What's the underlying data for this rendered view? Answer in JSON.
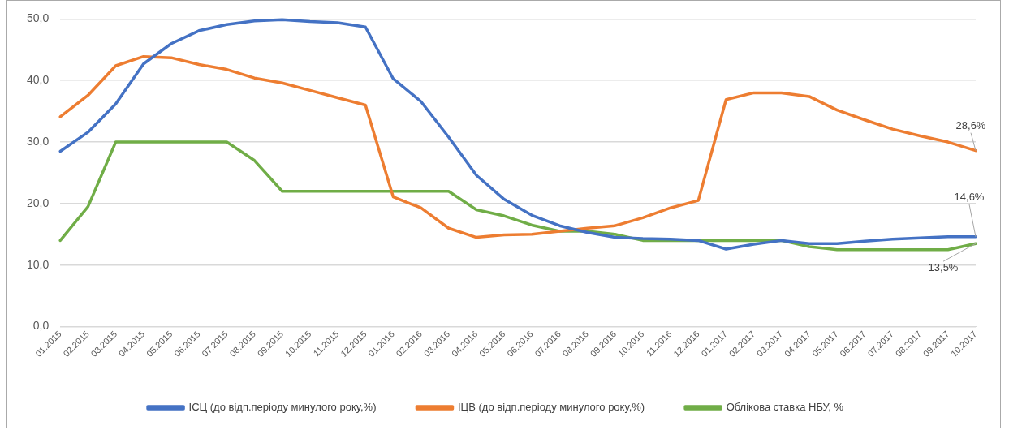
{
  "chart_data": {
    "type": "line",
    "categories": [
      "01.2015",
      "02.2015",
      "03.2015",
      "04.2015",
      "05.2015",
      "06.2015",
      "07.2015",
      "08.2015",
      "09.2015",
      "10.2015",
      "11.2015",
      "12.2015",
      "01.2016",
      "02.2016",
      "03.2016",
      "04.2016",
      "05.2016",
      "06.2016",
      "07.2016",
      "08.2016",
      "09.2016",
      "10.2016",
      "11.2016",
      "12.2016",
      "01.2017",
      "02.2017",
      "03.2017",
      "04.2017",
      "05.2017",
      "06.2017",
      "07.2017",
      "08.2017",
      "09.2017",
      "10.2017"
    ],
    "series": [
      {
        "name": "ІСЦ (до відп.періоду минулого року,%)",
        "color": "#4472c4",
        "values": [
          28.5,
          31.6,
          36.2,
          42.7,
          46.0,
          48.1,
          49.1,
          49.7,
          49.9,
          49.6,
          49.4,
          48.7,
          40.3,
          36.6,
          30.8,
          24.6,
          20.7,
          18.1,
          16.4,
          15.3,
          14.5,
          14.3,
          14.2,
          14.0,
          12.6,
          13.4,
          14.0,
          13.5,
          13.5,
          13.9,
          14.2,
          14.4,
          14.6,
          14.6
        ],
        "value_labels": [
          null,
          null,
          null,
          null,
          null,
          null,
          null,
          null,
          null,
          null,
          null,
          null,
          null,
          null,
          null,
          null,
          null,
          null,
          null,
          null,
          null,
          null,
          null,
          null,
          null,
          null,
          null,
          null,
          null,
          null,
          null,
          null,
          null,
          "14,6%"
        ]
      },
      {
        "name": "ІЦВ (до відп.періоду минулого року,%)",
        "color": "#ed7d31",
        "values": [
          34.1,
          37.6,
          42.4,
          43.9,
          43.7,
          42.6,
          41.8,
          40.4,
          39.6,
          38.4,
          37.2,
          36.0,
          21.1,
          19.3,
          16.0,
          14.5,
          14.9,
          15.0,
          15.5,
          16.0,
          16.4,
          17.7,
          19.3,
          20.5,
          36.9,
          38.0,
          38.0,
          37.4,
          35.2,
          33.6,
          32.1,
          31.0,
          30.0,
          28.6
        ],
        "value_labels": [
          null,
          null,
          null,
          null,
          null,
          null,
          null,
          null,
          null,
          null,
          null,
          null,
          null,
          null,
          null,
          null,
          null,
          null,
          null,
          null,
          null,
          null,
          null,
          null,
          null,
          null,
          null,
          null,
          null,
          null,
          null,
          null,
          null,
          "28,6%"
        ]
      },
      {
        "name": "Облікова ставка НБУ, %",
        "color": "#70ad47",
        "values": [
          14,
          19.5,
          30,
          30,
          30,
          30,
          30,
          27,
          22,
          22,
          22,
          22,
          22,
          22,
          22,
          19,
          18,
          16.5,
          15.5,
          15.5,
          15,
          14,
          14,
          14,
          14,
          14,
          14,
          13,
          12.5,
          12.5,
          12.5,
          12.5,
          12.5,
          13.5
        ],
        "value_labels": [
          null,
          null,
          null,
          null,
          null,
          null,
          null,
          null,
          null,
          null,
          null,
          null,
          null,
          null,
          null,
          null,
          null,
          null,
          null,
          null,
          null,
          null,
          null,
          null,
          null,
          null,
          null,
          null,
          null,
          null,
          null,
          null,
          null,
          "13,5%"
        ]
      }
    ],
    "ylim": [
      0,
      50
    ],
    "yticks": [
      {
        "value": 0,
        "label": "0,0"
      },
      {
        "value": 10,
        "label": "10,0"
      },
      {
        "value": 20,
        "label": "20,0"
      },
      {
        "value": 30,
        "label": "30,0"
      },
      {
        "value": 40,
        "label": "40,0"
      },
      {
        "value": 50,
        "label": "50,0"
      }
    ],
    "grid": "y",
    "legend": "bottom",
    "marker": "none",
    "line_style": "solid"
  }
}
